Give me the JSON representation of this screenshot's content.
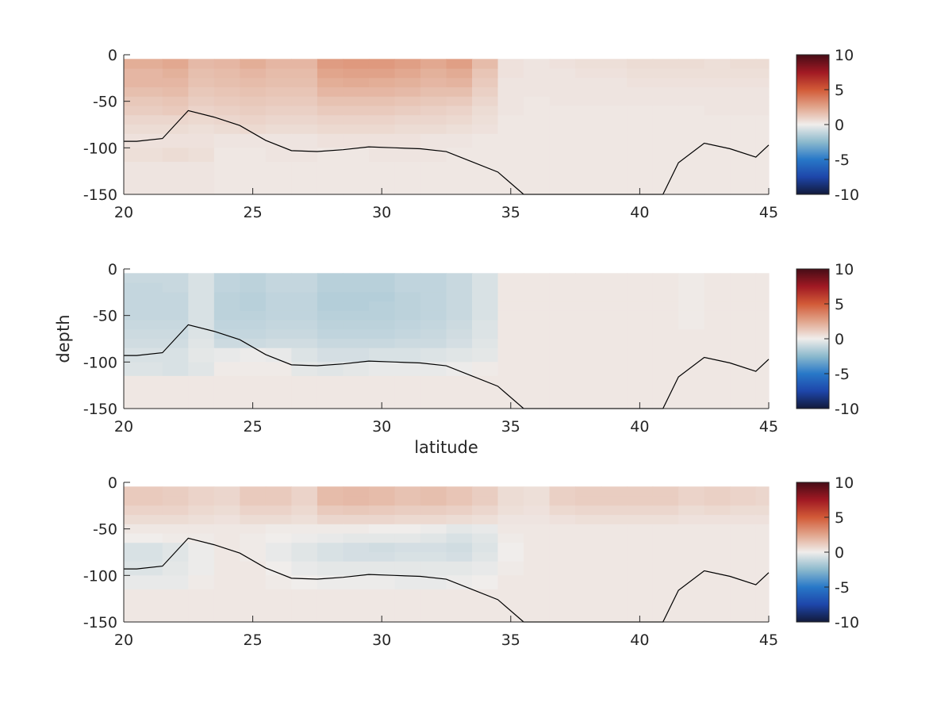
{
  "figure": {
    "xlabel": "latitude",
    "ylabel": "depth"
  },
  "chart_data": [
    {
      "type": "heatmap",
      "name": "panel-1",
      "xlim": [
        20,
        45
      ],
      "ylim": [
        -150,
        0
      ],
      "x_ticks": [
        20,
        25,
        30,
        35,
        40,
        45
      ],
      "y_ticks": [
        0,
        -50,
        -100,
        -150
      ],
      "colorbar": {
        "ticks": [
          10,
          5,
          0,
          -5,
          -10
        ],
        "range": [
          -10,
          10
        ],
        "colormap": "blue-white-red (balance)"
      },
      "x_edges": [
        20,
        21.5,
        22.5,
        23.5,
        24.5,
        25.5,
        26.5,
        27.5,
        28.5,
        29.5,
        30.5,
        31.5,
        32.5,
        33.5,
        34.5,
        35.5,
        36.5,
        37.5,
        38.5,
        39.5,
        40.5,
        41.5,
        42.5,
        43.5,
        44.5,
        45
      ],
      "y_edges": [
        -4.5,
        -15,
        -25,
        -35,
        -45,
        -55,
        -65,
        -75,
        -85,
        -100,
        -115,
        -150
      ],
      "values": [
        [
          2.2,
          2.4,
          1.8,
          1.9,
          2.2,
          1.9,
          1.9,
          2.8,
          2.9,
          2.9,
          2.7,
          2.4,
          2.7,
          1.7,
          0.4,
          0.3,
          0.4,
          0.5,
          0.5,
          0.6,
          0.6,
          0.6,
          0.5,
          0.6,
          0.6
        ],
        [
          1.9,
          2.1,
          1.6,
          1.7,
          1.9,
          1.7,
          1.7,
          2.5,
          2.6,
          2.6,
          2.4,
          2.1,
          2.3,
          1.4,
          0.4,
          0.3,
          0.3,
          0.4,
          0.4,
          0.5,
          0.5,
          0.5,
          0.5,
          0.5,
          0.5
        ],
        [
          1.9,
          1.9,
          1.5,
          1.6,
          1.7,
          1.6,
          1.6,
          2.2,
          2.3,
          2.2,
          2.1,
          1.9,
          2.0,
          1.2,
          0.3,
          0.3,
          0.3,
          0.3,
          0.3,
          0.4,
          0.4,
          0.4,
          0.4,
          0.4,
          0.4
        ],
        [
          1.6,
          1.7,
          1.3,
          1.4,
          1.5,
          1.4,
          1.4,
          1.9,
          1.9,
          1.9,
          1.8,
          1.6,
          1.6,
          1.0,
          0.3,
          0.3,
          0.3,
          0.3,
          0.3,
          0.3,
          0.3,
          0.3,
          0.3,
          0.3,
          0.3
        ],
        [
          1.3,
          1.4,
          1.1,
          1.2,
          1.3,
          1.2,
          1.2,
          1.5,
          1.5,
          1.5,
          1.4,
          1.3,
          1.2,
          0.8,
          0.3,
          0.2,
          0.3,
          0.3,
          0.3,
          0.3,
          0.3,
          0.3,
          0.3,
          0.3,
          0.3
        ],
        [
          1.1,
          1.2,
          0.9,
          1.0,
          1.1,
          1.0,
          1.0,
          1.2,
          1.2,
          1.2,
          1.1,
          1.0,
          0.9,
          0.6,
          0.3,
          0.2,
          0.2,
          0.2,
          0.2,
          0.2,
          0.2,
          0.2,
          0.3,
          0.3,
          0.3
        ],
        [
          0.8,
          0.8,
          0.7,
          0.8,
          0.9,
          0.8,
          0.8,
          0.9,
          0.9,
          0.9,
          0.8,
          0.8,
          0.7,
          0.5,
          0.2,
          0.2,
          0.2,
          0.2,
          0.2,
          0.2,
          0.2,
          0.2,
          0.2,
          0.2,
          0.2
        ],
        [
          0.6,
          0.6,
          0.5,
          0.6,
          0.7,
          0.6,
          0.6,
          0.7,
          0.7,
          0.7,
          0.6,
          0.6,
          0.5,
          0.4,
          0.2,
          0.2,
          0.2,
          0.2,
          0.2,
          0.2,
          0.2,
          0.2,
          0.2,
          0.2,
          0.2
        ],
        [
          0.4,
          0.4,
          0.4,
          0.3,
          0.3,
          0.3,
          0.3,
          0.4,
          0.4,
          0.4,
          0.4,
          0.3,
          0.3,
          0.2,
          0.2,
          0.2,
          0.2,
          0.2,
          0.2,
          0.2,
          0.2,
          0.2,
          0.2,
          0.2,
          0.2
        ],
        [
          0.5,
          0.6,
          0.5,
          0.2,
          0.2,
          0.3,
          0.3,
          0.2,
          0.2,
          0.3,
          0.3,
          0.3,
          0.2,
          0.2,
          0.2,
          0.2,
          0.2,
          0.2,
          0.2,
          0.2,
          0.2,
          0.2,
          0.2,
          0.2,
          0.2
        ],
        [
          0.3,
          0.3,
          0.3,
          0.2,
          0.2,
          0.2,
          0.2,
          0.2,
          0.2,
          0.2,
          0.2,
          0.2,
          0.2,
          0.2,
          0.2,
          0.2,
          0.2,
          0.2,
          0.2,
          0.2,
          0.2,
          0.2,
          0.2,
          0.2,
          0.2
        ]
      ],
      "line": {
        "x": [
          20,
          20.5,
          21.5,
          22.5,
          23.5,
          24.5,
          25.5,
          26.5,
          27.5,
          28.5,
          29.5,
          30.5,
          31.5,
          32.5,
          33.5,
          34.5,
          35.5,
          36.5,
          37.5,
          38.5,
          39.5,
          40.5,
          40.9,
          41.5,
          42.5,
          43.5,
          44.5,
          45
        ],
        "y": [
          -93,
          -93,
          -90,
          -60,
          -67,
          -76,
          -92,
          -103,
          -104,
          -102,
          -99,
          -100,
          -101,
          -104,
          -115,
          -126,
          -150,
          -150,
          -150,
          -150,
          -150,
          -150,
          -150,
          -116,
          -95,
          -101,
          -110,
          -97
        ]
      }
    },
    {
      "type": "heatmap",
      "name": "panel-2",
      "xlim": [
        20,
        45
      ],
      "ylim": [
        -150,
        0
      ],
      "x_ticks": [
        20,
        25,
        30,
        35,
        40,
        45
      ],
      "y_ticks": [
        0,
        -50,
        -100,
        -150
      ],
      "colorbar": {
        "ticks": [
          10,
          5,
          0,
          -5,
          -10
        ],
        "range": [
          -10,
          10
        ],
        "colormap": "blue-white-red (balance)"
      },
      "x_edges": [
        20,
        21.5,
        22.5,
        23.5,
        24.5,
        25.5,
        26.5,
        27.5,
        28.5,
        29.5,
        30.5,
        31.5,
        32.5,
        33.5,
        34.5,
        35.5,
        36.5,
        37.5,
        38.5,
        39.5,
        40.5,
        41.5,
        42.5,
        43.5,
        44.5,
        45
      ],
      "y_edges": [
        -4.5,
        -15,
        -25,
        -35,
        -45,
        -55,
        -65,
        -75,
        -85,
        -100,
        -115,
        -150
      ],
      "values": [
        [
          -1.0,
          -1.0,
          -0.6,
          -1.2,
          -1.3,
          -1.1,
          -1.1,
          -1.4,
          -1.4,
          -1.4,
          -1.2,
          -1.2,
          -1.0,
          -0.6,
          0.2,
          0.2,
          0.2,
          0.2,
          0.2,
          0.2,
          0.2,
          0.1,
          0.2,
          0.2,
          0.2
        ],
        [
          -1.1,
          -1.0,
          -0.6,
          -1.2,
          -1.3,
          -1.1,
          -1.1,
          -1.4,
          -1.4,
          -1.4,
          -1.2,
          -1.2,
          -1.0,
          -0.6,
          0.2,
          0.2,
          0.2,
          0.2,
          0.2,
          0.2,
          0.2,
          0.1,
          0.2,
          0.2,
          0.2
        ],
        [
          -1.1,
          -1.1,
          -0.6,
          -1.3,
          -1.4,
          -1.2,
          -1.2,
          -1.5,
          -1.5,
          -1.5,
          -1.3,
          -1.2,
          -1.0,
          -0.6,
          0.2,
          0.2,
          0.2,
          0.2,
          0.2,
          0.2,
          0.2,
          0.1,
          0.2,
          0.2,
          0.2
        ],
        [
          -1.1,
          -1.1,
          -0.6,
          -1.3,
          -1.4,
          -1.2,
          -1.2,
          -1.5,
          -1.5,
          -1.4,
          -1.3,
          -1.2,
          -1.0,
          -0.6,
          0.2,
          0.2,
          0.2,
          0.2,
          0.2,
          0.2,
          0.2,
          0.1,
          0.2,
          0.2,
          0.2
        ],
        [
          -1.1,
          -1.1,
          -0.6,
          -1.3,
          -1.3,
          -1.2,
          -1.2,
          -1.4,
          -1.4,
          -1.4,
          -1.3,
          -1.2,
          -1.0,
          -0.6,
          0.2,
          0.2,
          0.2,
          0.2,
          0.2,
          0.2,
          0.2,
          0.1,
          0.2,
          0.2,
          0.2
        ],
        [
          -1.0,
          -1.0,
          -0.6,
          -1.2,
          -1.2,
          -1.1,
          -1.1,
          -1.3,
          -1.3,
          -1.3,
          -1.2,
          -1.1,
          -0.9,
          -0.5,
          0.2,
          0.2,
          0.2,
          0.2,
          0.2,
          0.2,
          0.2,
          0.1,
          0.2,
          0.2,
          0.2
        ],
        [
          -0.9,
          -0.9,
          -0.5,
          -1.1,
          -1.1,
          -1.0,
          -1.0,
          -1.2,
          -1.2,
          -1.2,
          -1.1,
          -1.0,
          -0.8,
          -0.5,
          0.2,
          0.2,
          0.2,
          0.2,
          0.2,
          0.2,
          0.2,
          0.2,
          0.2,
          0.2,
          0.2
        ],
        [
          -0.8,
          -0.8,
          -0.4,
          -0.9,
          -0.9,
          -0.8,
          -0.8,
          -1.0,
          -1.0,
          -1.0,
          -0.9,
          -0.9,
          -0.7,
          -0.4,
          0.2,
          0.2,
          0.2,
          0.2,
          0.2,
          0.2,
          0.2,
          0.2,
          0.2,
          0.2,
          0.2
        ],
        [
          -0.6,
          -0.6,
          -0.3,
          -0.2,
          -0.1,
          -0.2,
          -0.5,
          -0.7,
          -0.7,
          -0.6,
          -0.6,
          -0.5,
          -0.4,
          -0.3,
          0.2,
          0.2,
          0.2,
          0.2,
          0.2,
          0.2,
          0.2,
          0.2,
          0.2,
          0.2,
          0.2
        ],
        [
          -0.5,
          -0.6,
          -0.4,
          0.1,
          0.1,
          0.1,
          -0.3,
          -0.4,
          -0.3,
          -0.2,
          -0.2,
          -0.2,
          -0.1,
          0.1,
          0.2,
          0.2,
          0.2,
          0.2,
          0.2,
          0.2,
          0.2,
          0.2,
          0.2,
          0.2,
          0.2
        ],
        [
          0.2,
          0.2,
          0.2,
          0.2,
          0.2,
          0.2,
          0.2,
          0.2,
          0.2,
          0.2,
          0.2,
          0.2,
          0.2,
          0.2,
          0.2,
          0.2,
          0.2,
          0.2,
          0.2,
          0.2,
          0.2,
          0.2,
          0.2,
          0.2,
          0.2
        ]
      ],
      "line": {
        "x": [
          20,
          20.5,
          21.5,
          22.5,
          23.5,
          24.5,
          25.5,
          26.5,
          27.5,
          28.5,
          29.5,
          30.5,
          31.5,
          32.5,
          33.5,
          34.5,
          35.5,
          36.5,
          37.5,
          38.5,
          39.5,
          40.5,
          40.9,
          41.5,
          42.5,
          43.5,
          44.5,
          45
        ],
        "y": [
          -93,
          -93,
          -90,
          -60,
          -67,
          -76,
          -92,
          -103,
          -104,
          -102,
          -99,
          -100,
          -101,
          -104,
          -115,
          -126,
          -150,
          -150,
          -150,
          -150,
          -150,
          -150,
          -150,
          -116,
          -95,
          -101,
          -110,
          -97
        ]
      }
    },
    {
      "type": "heatmap",
      "name": "panel-3",
      "xlim": [
        20,
        45
      ],
      "ylim": [
        -150,
        0
      ],
      "x_ticks": [
        20,
        25,
        30,
        35,
        40,
        45
      ],
      "y_ticks": [
        0,
        -50,
        -100,
        -150
      ],
      "colorbar": {
        "ticks": [
          10,
          5,
          0,
          -5,
          -10
        ],
        "range": [
          -10,
          10
        ],
        "colormap": "blue-white-red (balance)"
      },
      "x_edges": [
        20,
        21.5,
        22.5,
        23.5,
        24.5,
        25.5,
        26.5,
        27.5,
        28.5,
        29.5,
        30.5,
        31.5,
        32.5,
        33.5,
        34.5,
        35.5,
        36.5,
        37.5,
        38.5,
        39.5,
        40.5,
        41.5,
        42.5,
        43.5,
        44.5,
        45
      ],
      "y_edges": [
        -4.5,
        -15,
        -25,
        -35,
        -45,
        -55,
        -65,
        -75,
        -85,
        -100,
        -115,
        -150
      ],
      "values": [
        [
          1.2,
          1.1,
          0.9,
          0.8,
          1.2,
          1.2,
          0.9,
          1.7,
          1.8,
          1.7,
          1.5,
          1.6,
          1.4,
          1.1,
          0.6,
          0.5,
          1.0,
          1.1,
          1.1,
          1.1,
          1.1,
          0.9,
          1.0,
          0.9,
          0.8
        ],
        [
          1.2,
          1.1,
          0.9,
          0.8,
          1.2,
          1.2,
          0.9,
          1.7,
          1.8,
          1.7,
          1.5,
          1.6,
          1.4,
          1.1,
          0.6,
          0.5,
          1.0,
          1.1,
          1.1,
          1.1,
          1.1,
          0.9,
          1.0,
          0.9,
          0.8
        ],
        [
          0.9,
          0.9,
          0.7,
          0.6,
          0.9,
          0.9,
          0.7,
          1.2,
          1.3,
          1.2,
          1.1,
          1.1,
          1.0,
          0.8,
          0.5,
          0.4,
          0.7,
          0.8,
          0.8,
          0.8,
          0.8,
          0.6,
          0.7,
          0.6,
          0.6
        ],
        [
          0.6,
          0.6,
          0.5,
          0.4,
          0.6,
          0.6,
          0.5,
          0.8,
          0.8,
          0.8,
          0.7,
          0.7,
          0.6,
          0.5,
          0.3,
          0.3,
          0.4,
          0.5,
          0.5,
          0.5,
          0.5,
          0.4,
          0.4,
          0.4,
          0.4
        ],
        [
          0.2,
          0.2,
          0.2,
          0.2,
          0.2,
          0.1,
          0.1,
          0.1,
          0.1,
          0.0,
          0.0,
          -0.1,
          -0.3,
          -0.2,
          0.2,
          0.2,
          0.2,
          0.2,
          0.2,
          0.2,
          0.2,
          0.2,
          0.2,
          0.2,
          0.2
        ],
        [
          0.0,
          0.1,
          0.1,
          0.2,
          0.1,
          0.0,
          -0.1,
          -0.2,
          -0.3,
          -0.3,
          -0.3,
          -0.4,
          -0.6,
          -0.4,
          0.1,
          0.2,
          0.2,
          0.2,
          0.2,
          0.2,
          0.2,
          0.2,
          0.2,
          0.2,
          0.2
        ],
        [
          -0.6,
          -0.4,
          -0.1,
          0.2,
          0.1,
          -0.2,
          -0.4,
          -0.6,
          -0.7,
          -0.8,
          -0.7,
          -0.7,
          -0.8,
          -0.5,
          0.0,
          0.2,
          0.2,
          0.2,
          0.2,
          0.2,
          0.2,
          0.2,
          0.2,
          0.2,
          0.2
        ],
        [
          -0.6,
          -0.4,
          -0.1,
          0.2,
          0.1,
          -0.2,
          -0.4,
          -0.6,
          -0.7,
          -0.7,
          -0.6,
          -0.6,
          -0.7,
          -0.4,
          0.0,
          0.2,
          0.2,
          0.2,
          0.2,
          0.2,
          0.2,
          0.2,
          0.2,
          0.2,
          0.2
        ],
        [
          -0.5,
          -0.3,
          -0.1,
          0.2,
          0.2,
          0.0,
          -0.2,
          -0.3,
          -0.3,
          -0.3,
          -0.3,
          -0.3,
          -0.3,
          -0.2,
          0.1,
          0.2,
          0.2,
          0.2,
          0.2,
          0.2,
          0.2,
          0.2,
          0.2,
          0.2,
          0.2
        ],
        [
          -0.2,
          -0.2,
          0.1,
          0.2,
          0.2,
          0.1,
          0.0,
          -0.1,
          -0.1,
          -0.1,
          -0.2,
          -0.2,
          -0.1,
          0.0,
          0.2,
          0.2,
          0.2,
          0.2,
          0.2,
          0.2,
          0.2,
          0.2,
          0.2,
          0.2,
          0.2
        ],
        [
          0.2,
          0.2,
          0.2,
          0.2,
          0.2,
          0.2,
          0.2,
          0.2,
          0.2,
          0.2,
          0.2,
          0.2,
          0.2,
          0.2,
          0.2,
          0.2,
          0.2,
          0.2,
          0.2,
          0.2,
          0.2,
          0.2,
          0.2,
          0.2,
          0.2
        ]
      ],
      "line": {
        "x": [
          20,
          20.5,
          21.5,
          22.5,
          23.5,
          24.5,
          25.5,
          26.5,
          27.5,
          28.5,
          29.5,
          30.5,
          31.5,
          32.5,
          33.5,
          34.5,
          35.5,
          36.5,
          37.5,
          38.5,
          39.5,
          40.5,
          40.9,
          41.5,
          42.5,
          43.5,
          44.5,
          45
        ],
        "y": [
          -93,
          -93,
          -90,
          -60,
          -67,
          -76,
          -92,
          -103,
          -104,
          -102,
          -99,
          -100,
          -101,
          -104,
          -115,
          -126,
          -150,
          -150,
          -150,
          -150,
          -150,
          -150,
          -150,
          -116,
          -95,
          -101,
          -110,
          -97
        ]
      }
    }
  ]
}
